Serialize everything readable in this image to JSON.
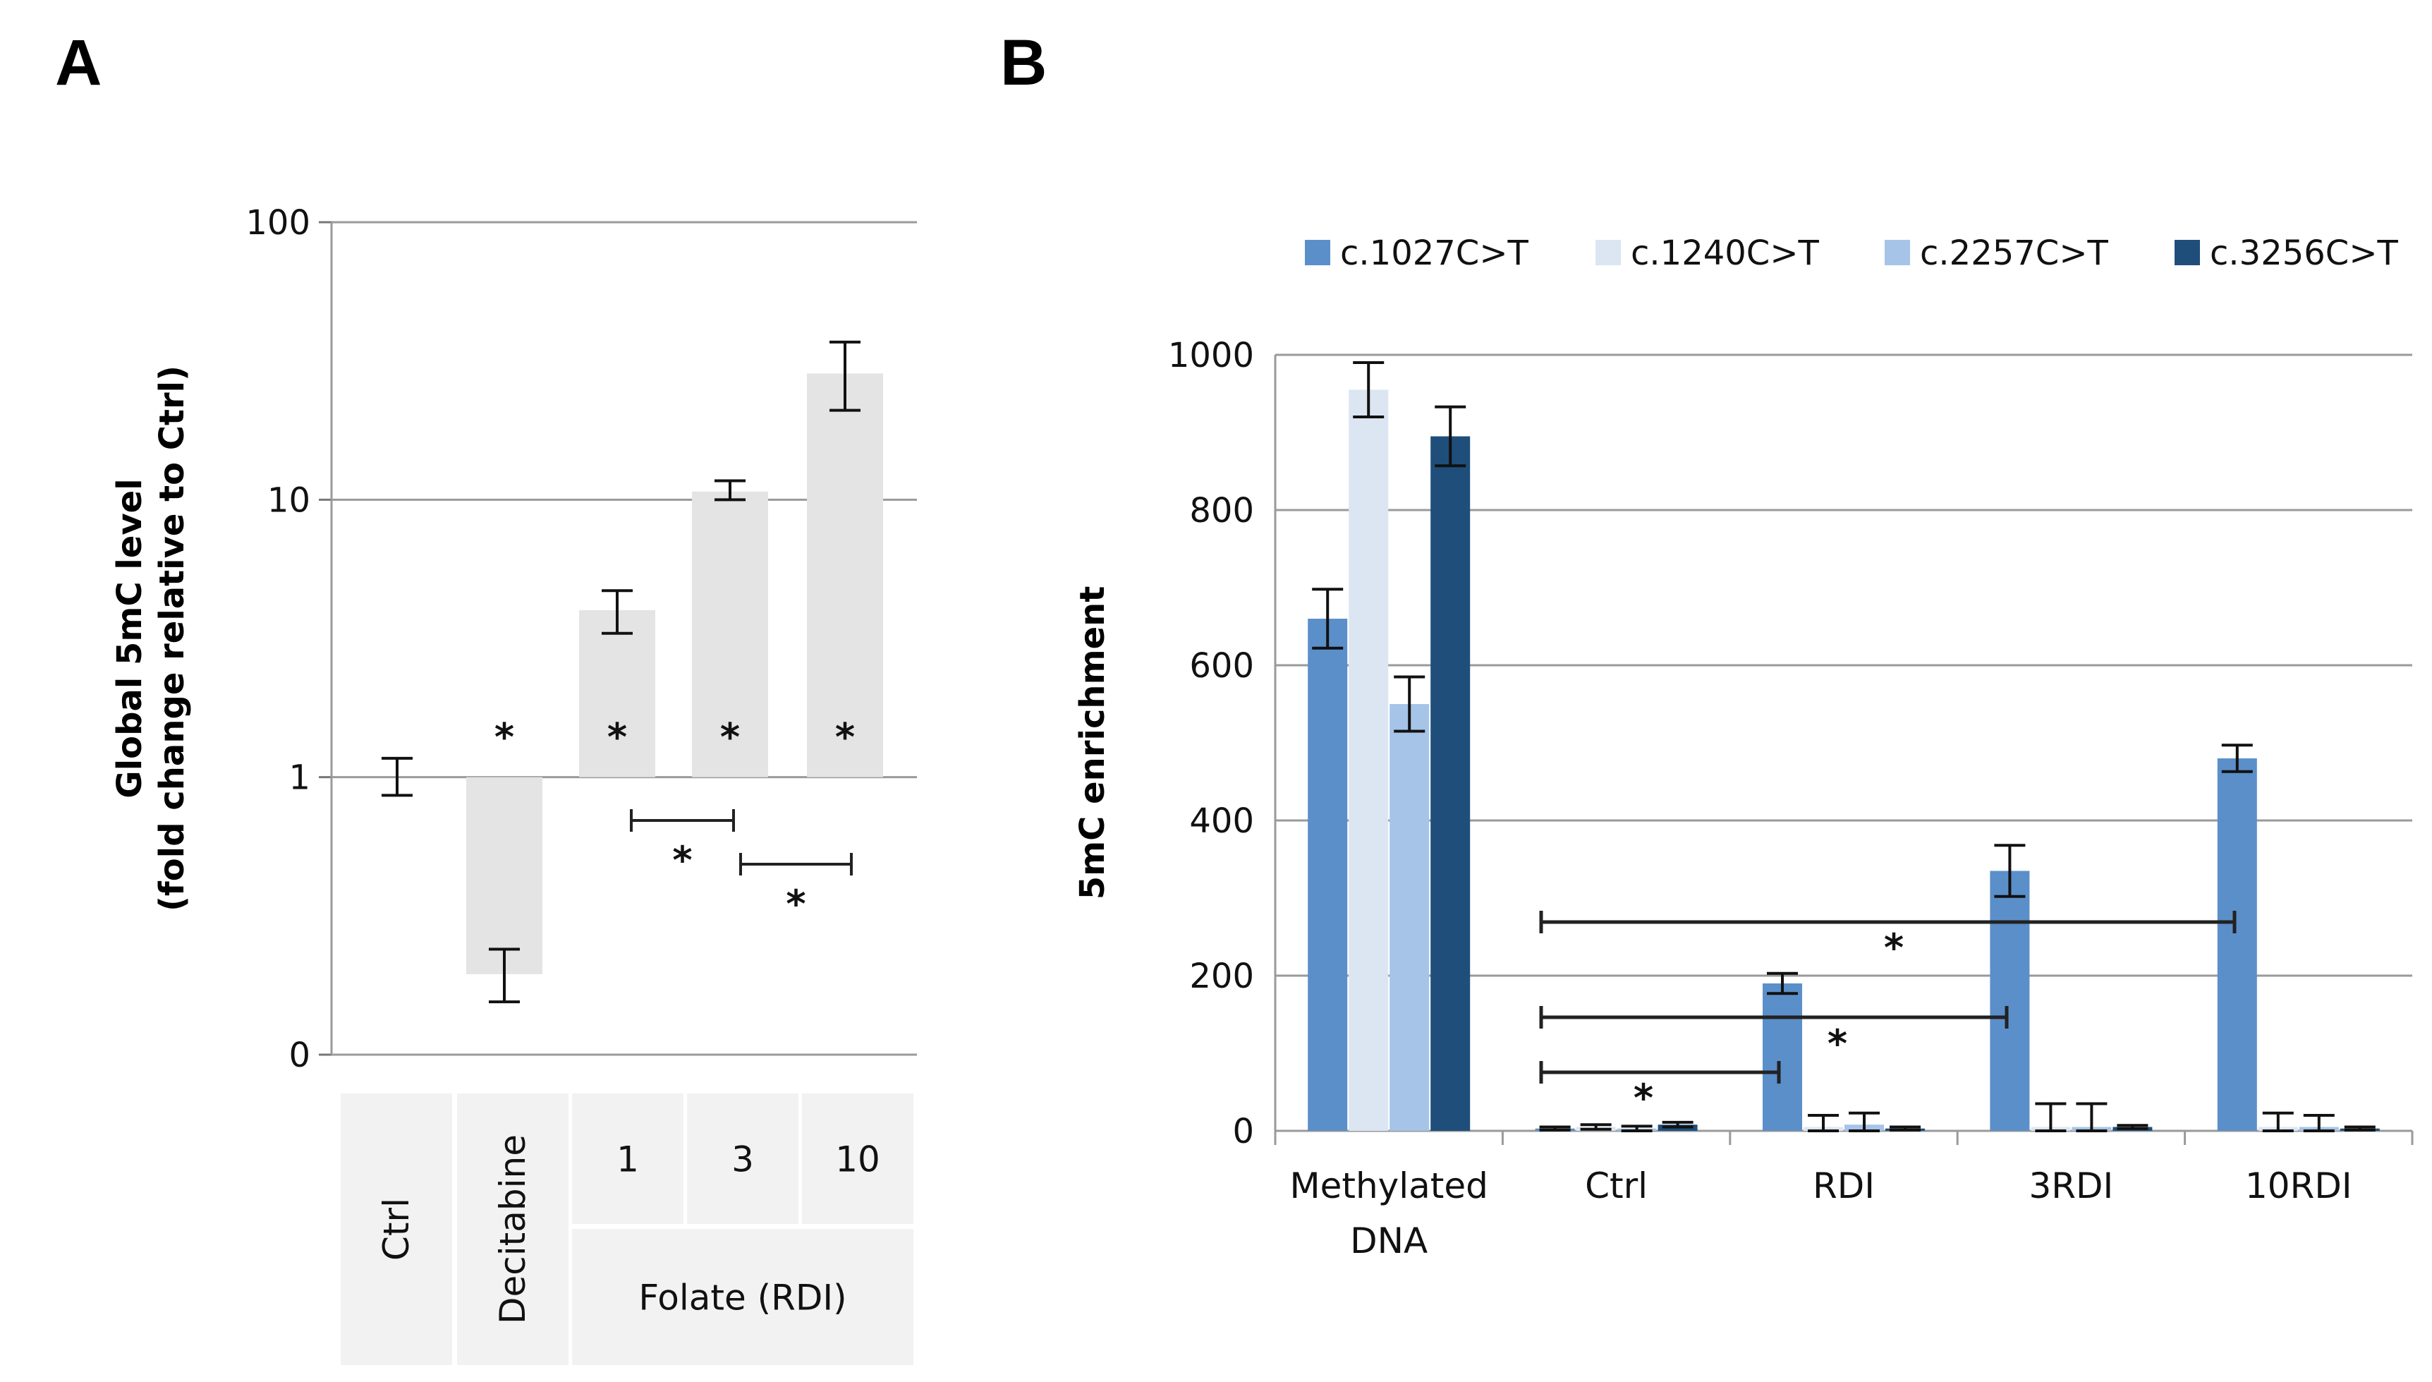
{
  "panels": {
    "a_label": "A",
    "b_label": "B"
  },
  "chart_data": [
    {
      "id": "A",
      "type": "bar",
      "yscale": "log",
      "ylabel_line1": "Global 5mC level",
      "ylabel_line2": "(fold change relative to Ctrl)",
      "yticks": [
        {
          "value": 0.1,
          "label": "0"
        },
        {
          "value": 1,
          "label": "1"
        },
        {
          "value": 10,
          "label": "10"
        },
        {
          "value": 100,
          "label": "100"
        }
      ],
      "ylim": [
        0.1,
        100
      ],
      "baseline": 1,
      "categories": [
        {
          "label": "Ctrl",
          "value": 1.0,
          "err_low": 0.86,
          "err_high": 1.17,
          "significant": false
        },
        {
          "label": "Decitabine",
          "value": 0.195,
          "err_low": 0.155,
          "err_high": 0.24,
          "significant": true
        },
        {
          "label": "1",
          "value": 4.0,
          "err_low": 3.3,
          "err_high": 4.7,
          "significant": true
        },
        {
          "label": "3",
          "value": 10.7,
          "err_low": 10.0,
          "err_high": 11.7,
          "significant": true
        },
        {
          "label": "10",
          "value": 28.5,
          "err_low": 21.0,
          "err_high": 37.0,
          "significant": true
        }
      ],
      "group_label": "Folate (RDI)",
      "comparisons": [
        {
          "from": "1",
          "to": "3",
          "label": "*"
        },
        {
          "from": "3",
          "to": "10",
          "label": "*"
        }
      ],
      "star_label": "*",
      "bar_color": "#e4e4e4",
      "cell_color": "#f2f2f2"
    },
    {
      "id": "B",
      "type": "bar",
      "ylabel": "5mC enrichment",
      "ylim": [
        0,
        1000
      ],
      "yticks": [
        0,
        200,
        400,
        600,
        800,
        1000
      ],
      "categories": [
        "Methylated DNA",
        "Ctrl",
        "RDI",
        "3RDI",
        "10RDI"
      ],
      "series": [
        {
          "name": "c.1027C>T",
          "color": "#5b8fc9",
          "values": [
            660,
            3,
            190,
            335,
            480
          ],
          "errors": [
            38,
            2,
            13,
            33,
            17
          ]
        },
        {
          "name": "c.1240C>T",
          "color": "#dce6f2",
          "values": [
            955,
            5,
            5,
            5,
            5
          ],
          "errors": [
            35,
            3,
            15,
            30,
            18
          ]
        },
        {
          "name": "c.2257C>T",
          "color": "#a6c4e8",
          "values": [
            550,
            3,
            8,
            5,
            5
          ],
          "errors": [
            35,
            3,
            15,
            30,
            15
          ]
        },
        {
          "name": "c.3256C>T",
          "color": "#1f4e7b",
          "values": [
            895,
            8,
            3,
            5,
            3
          ],
          "errors": [
            38,
            3,
            2,
            2,
            2
          ]
        }
      ],
      "comparisons": [
        {
          "from": "Ctrl",
          "to": "RDI",
          "label": "*"
        },
        {
          "from": "Ctrl",
          "to": "3RDI",
          "label": "*"
        },
        {
          "from": "Ctrl",
          "to": "10RDI",
          "label": "*"
        }
      ],
      "legend_position": "top"
    }
  ]
}
